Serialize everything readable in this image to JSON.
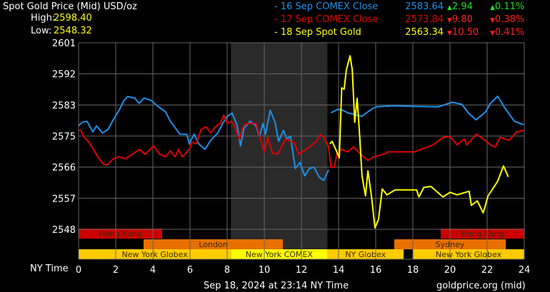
{
  "header": {
    "title": "Spot Gold Price (Mid) USD/oz",
    "high_label": "High:",
    "high_value": "2598.40",
    "low_label": "Low:",
    "low_value": "2548.32"
  },
  "legend": [
    {
      "label": "- 16 Sep COMEX Close",
      "price": "2583.64",
      "change": "2.94",
      "pct": "0.11%",
      "direction": "up",
      "color": "#1e90e8"
    },
    {
      "label": "- 17 Sep COMEX Close",
      "price": "2573.84",
      "change": "9.80",
      "pct": "0.38%",
      "direction": "down",
      "color": "#e00000"
    },
    {
      "label": "- 18 Sep Spot Gold",
      "price": "2563.34",
      "change": "10.50",
      "pct": "0.41%",
      "direction": "down",
      "color": "#ffff00"
    }
  ],
  "colors": {
    "up": "#22dd22",
    "down": "#ff2020",
    "grid": "#666666",
    "shade": "#2a2a2a"
  },
  "footer": {
    "timestamp": "Sep 18, 2024 at 23:14 NY Time",
    "source": "goldprice.org (mid)",
    "x_axis_label": "NY Time"
  },
  "chart_data": {
    "type": "line",
    "xlim": [
      0,
      24
    ],
    "ylim": [
      2548,
      2601
    ],
    "y_ticks": [
      "2601",
      "2592",
      "2583",
      "2575",
      "2566",
      "2557",
      "2548"
    ],
    "x_ticks": [
      "0",
      "2",
      "4",
      "6",
      "8",
      "10",
      "12",
      "14",
      "16",
      "18",
      "20",
      "22",
      "24"
    ],
    "xlabel": "NY Time",
    "grid": true,
    "shaded_hours": [
      8.2,
      13.4
    ],
    "sessions": [
      {
        "name": "Hong Kong",
        "start": 0,
        "end": 4.5,
        "row": 0,
        "color": "#cc0000"
      },
      {
        "name": "Hong Kong",
        "start": 19.5,
        "end": 24,
        "row": 0,
        "color": "#cc0000"
      },
      {
        "name": "London",
        "start": 3.5,
        "end": 11,
        "row": 1,
        "color": "#e87000"
      },
      {
        "name": "Sydney",
        "start": 17,
        "end": 23,
        "row": 1,
        "color": "#e87000"
      },
      {
        "name": "New York Globex",
        "start": 0,
        "end": 8.2,
        "row": 2,
        "color": "#ffcc00"
      },
      {
        "name": "New York COMEX",
        "start": 8.2,
        "end": 13.4,
        "row": 2,
        "color": "#ffff00"
      },
      {
        "name": "NY Globex",
        "start": 13.4,
        "end": 17.5,
        "row": 2,
        "color": "#ffcc00"
      },
      {
        "name": "New York Globex",
        "start": 18,
        "end": 24,
        "row": 2,
        "color": "#ffcc00"
      }
    ],
    "series": [
      {
        "name": "16 Sep COMEX Close",
        "color": "#1e90e8",
        "segments": [
          [
            [
              0,
              2577.4
            ],
            [
              0.19,
              2578.4
            ],
            [
              0.45,
              2578.7
            ],
            [
              0.77,
              2575.7
            ],
            [
              0.96,
              2577.4
            ],
            [
              1.28,
              2575.4
            ],
            [
              1.6,
              2576.4
            ],
            [
              1.86,
              2579.1
            ],
            [
              2.18,
              2581.8
            ],
            [
              2.43,
              2584.5
            ],
            [
              2.63,
              2585.7
            ],
            [
              3.01,
              2585.3
            ],
            [
              3.27,
              2583.8
            ],
            [
              3.53,
              2585.3
            ],
            [
              3.91,
              2584.6
            ],
            [
              4.3,
              2582.8
            ],
            [
              4.68,
              2581.4
            ],
            [
              4.94,
              2578.7
            ],
            [
              5.13,
              2577.4
            ],
            [
              5.45,
              2575.0
            ],
            [
              5.83,
              2575.0
            ],
            [
              5.96,
              2572.3
            ],
            [
              6.22,
              2575
            ],
            [
              6.47,
              2572.3
            ],
            [
              6.8,
              2570.7
            ],
            [
              7.12,
              2573.3
            ],
            [
              7.5,
              2575.4
            ],
            [
              7.76,
              2578.1
            ],
            [
              8.01,
              2580.1
            ],
            [
              8.27,
              2581
            ],
            [
              8.53,
              2577.7
            ],
            [
              8.72,
              2571.7
            ],
            [
              8.91,
              2576.7
            ],
            [
              9.23,
              2578.7
            ],
            [
              9.55,
              2577.4
            ],
            [
              9.74,
              2574.4
            ],
            [
              9.93,
              2578.1
            ],
            [
              10.06,
              2575
            ],
            [
              10.32,
              2581.8
            ],
            [
              10.58,
              2578.4
            ],
            [
              10.77,
              2573
            ],
            [
              11.03,
              2576.1
            ],
            [
              11.22,
              2573.7
            ],
            [
              11.41,
              2574.4
            ],
            [
              11.67,
              2565.3
            ],
            [
              11.92,
              2567
            ],
            [
              12.18,
              2563.2
            ],
            [
              12.43,
              2565.3
            ],
            [
              12.69,
              2565.6
            ],
            [
              12.95,
              2562.9
            ],
            [
              13.2,
              2561.9
            ],
            [
              13.46,
              2564.9
            ]
          ],
          [
            [
              13.59,
              2581.1
            ],
            [
              13.97,
              2582.1
            ],
            [
              14.23,
              2581.8
            ],
            [
              14.49,
              2581.1
            ],
            [
              15.25,
              2580.1
            ],
            [
              15.77,
              2582.1
            ],
            [
              16.03,
              2582.8
            ],
            [
              16.92,
              2583.1
            ],
            [
              18.33,
              2582.9
            ],
            [
              19.36,
              2582.8
            ],
            [
              20.13,
              2584.1
            ],
            [
              20.64,
              2583.5
            ],
            [
              21.03,
              2580.8
            ],
            [
              21.41,
              2579.1
            ],
            [
              21.92,
              2581.4
            ],
            [
              22.18,
              2583.8
            ],
            [
              22.57,
              2585.8
            ],
            [
              22.95,
              2582.5
            ],
            [
              23.46,
              2578.7
            ],
            [
              23.97,
              2577.7
            ]
          ]
        ]
      },
      {
        "name": "17 Sep COMEX Close",
        "color": "#e00000",
        "segments": [
          [
            [
              0,
              2576.1
            ],
            [
              0.13,
              2576.1
            ],
            [
              0.26,
              2574.4
            ],
            [
              0.51,
              2573.0
            ],
            [
              0.77,
              2571
            ],
            [
              1.03,
              2568.6
            ],
            [
              1.35,
              2566.4
            ],
            [
              1.54,
              2566.3
            ],
            [
              1.86,
              2568
            ],
            [
              2.18,
              2568.6
            ],
            [
              2.5,
              2568
            ],
            [
              2.88,
              2569.3
            ],
            [
              3.27,
              2570.7
            ],
            [
              3.59,
              2569.3
            ],
            [
              4.04,
              2571.7
            ],
            [
              4.36,
              2569.3
            ],
            [
              4.68,
              2568.6
            ],
            [
              4.94,
              2570.3
            ],
            [
              5.19,
              2568.6
            ],
            [
              5.38,
              2570.7
            ],
            [
              5.58,
              2568.6
            ],
            [
              5.96,
              2570.7
            ],
            [
              6.09,
              2572.7
            ],
            [
              6.35,
              2572.3
            ],
            [
              6.6,
              2576.4
            ],
            [
              6.86,
              2577.1
            ],
            [
              7.12,
              2575.4
            ],
            [
              7.37,
              2577.1
            ],
            [
              7.63,
              2578.1
            ],
            [
              7.82,
              2580.4
            ],
            [
              8.01,
              2578.1
            ],
            [
              8.2,
              2578.7
            ],
            [
              8.4,
              2577.4
            ],
            [
              8.65,
              2573.7
            ],
            [
              8.91,
              2577.7
            ],
            [
              9.17,
              2578.1
            ],
            [
              9.55,
              2578.1
            ],
            [
              9.81,
              2573.3
            ],
            [
              10,
              2570
            ],
            [
              10.19,
              2574.1
            ],
            [
              10.45,
              2569.6
            ],
            [
              10.71,
              2569.3
            ],
            [
              10.96,
              2571.7
            ],
            [
              11.15,
              2573.7
            ],
            [
              11.41,
              2573
            ],
            [
              11.6,
              2572.7
            ],
            [
              11.86,
              2569.3
            ],
            [
              12.24,
              2570.7
            ],
            [
              12.5,
              2571.7
            ],
            [
              12.82,
              2573
            ],
            [
              13.01,
              2575
            ],
            [
              13.2,
              2574.1
            ],
            [
              13.46,
              2571.4
            ],
            [
              13.59,
              2565.6
            ],
            [
              13.78,
              2565.6
            ],
            [
              13.91,
              2569.6
            ],
            [
              14.17,
              2570.7
            ],
            [
              14.49,
              2570
            ],
            [
              14.81,
              2571.4
            ],
            [
              15.19,
              2569.3
            ],
            [
              15.58,
              2567.6
            ],
            [
              15.9,
              2568.6
            ],
            [
              16.41,
              2569.3
            ],
            [
              16.67,
              2570
            ],
            [
              17.05,
              2570
            ],
            [
              18.08,
              2570
            ],
            [
              18.59,
              2571
            ],
            [
              19.1,
              2572
            ],
            [
              19.62,
              2574.1
            ],
            [
              20,
              2574.4
            ],
            [
              20.38,
              2572
            ],
            [
              20.77,
              2573.7
            ],
            [
              20.9,
              2572
            ],
            [
              21.41,
              2575
            ],
            [
              21.79,
              2573.7
            ],
            [
              22.18,
              2572
            ],
            [
              22.44,
              2571.4
            ],
            [
              22.69,
              2574.1
            ],
            [
              23.2,
              2573.3
            ],
            [
              23.59,
              2575.7
            ],
            [
              23.97,
              2576.1
            ]
          ]
        ]
      },
      {
        "name": "18 Sep Spot Gold",
        "color": "#ffff00",
        "segments": [
          [
            [
              13.53,
              2572.3
            ],
            [
              13.65,
              2573
            ],
            [
              13.85,
              2570.7
            ],
            [
              14.04,
              2568.3
            ],
            [
              14.17,
              2588.2
            ],
            [
              14.3,
              2587.8
            ],
            [
              14.42,
              2593.3
            ],
            [
              14.62,
              2597.3
            ],
            [
              14.74,
              2593.3
            ],
            [
              14.87,
              2578.4
            ],
            [
              15,
              2585.2
            ],
            [
              15.13,
              2575
            ],
            [
              15.26,
              2563.2
            ],
            [
              15.45,
              2557.5
            ],
            [
              15.58,
              2564.6
            ],
            [
              15.77,
              2557.5
            ],
            [
              15.96,
              2548.4
            ],
            [
              16.15,
              2550.8
            ],
            [
              16.35,
              2559.5
            ],
            [
              16.6,
              2557.8
            ],
            [
              17.05,
              2559.2
            ],
            [
              18.2,
              2559.2
            ],
            [
              18.33,
              2557.2
            ],
            [
              18.59,
              2559.9
            ],
            [
              18.97,
              2560.2
            ],
            [
              19.62,
              2557.2
            ],
            [
              20,
              2558.5
            ],
            [
              20.38,
              2557.8
            ],
            [
              21.03,
              2558.8
            ],
            [
              21.15,
              2554.8
            ],
            [
              21.47,
              2556.1
            ],
            [
              21.79,
              2552.7
            ],
            [
              22.05,
              2557.5
            ],
            [
              22.56,
              2561.6
            ],
            [
              22.88,
              2566
            ],
            [
              23.14,
              2562.9
            ]
          ]
        ]
      }
    ]
  }
}
